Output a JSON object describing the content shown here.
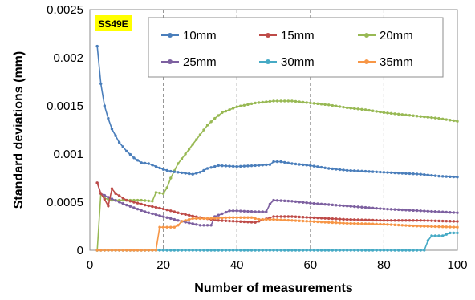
{
  "chart_data": {
    "type": "line",
    "badge": "SS49E",
    "xlabel": "Number of measurements",
    "ylabel": "Standard deviations (mm)",
    "xlim": [
      0,
      100
    ],
    "ylim": [
      0,
      0.0025
    ],
    "xticks": [
      "0",
      "20",
      "40",
      "60",
      "80",
      "100"
    ],
    "yticks": [
      "0",
      "0.0005",
      "0.001",
      "0.0015",
      "0.002",
      "0.0025"
    ],
    "grid": "vertical dashed",
    "legend_position": "top-right",
    "series": [
      {
        "name": "10mm",
        "color": "#4a7ebb",
        "points": [
          [
            2,
            0.00212
          ],
          [
            3,
            0.00173
          ],
          [
            4,
            0.0015
          ],
          [
            5,
            0.00137
          ],
          [
            6,
            0.00126
          ],
          [
            8,
            0.00112
          ],
          [
            10,
            0.00103
          ],
          [
            12,
            0.00096
          ],
          [
            14,
            0.00091
          ],
          [
            16,
            0.0009
          ],
          [
            18,
            0.00087
          ],
          [
            20,
            0.00084
          ],
          [
            22,
            0.00082
          ],
          [
            24,
            0.00081
          ],
          [
            26,
            0.0008
          ],
          [
            28,
            0.00079
          ],
          [
            30,
            0.00081
          ],
          [
            32,
            0.00085
          ],
          [
            35,
            0.00088
          ],
          [
            40,
            0.00087
          ],
          [
            45,
            0.00088
          ],
          [
            49,
            0.00089
          ],
          [
            50,
            0.00092
          ],
          [
            52,
            0.00092
          ],
          [
            55,
            0.0009
          ],
          [
            60,
            0.00088
          ],
          [
            65,
            0.00085
          ],
          [
            70,
            0.00083
          ],
          [
            75,
            0.00082
          ],
          [
            80,
            0.00081
          ],
          [
            85,
            0.0008
          ],
          [
            90,
            0.00079
          ],
          [
            95,
            0.00077
          ],
          [
            100,
            0.00076
          ]
        ]
      },
      {
        "name": "15mm",
        "color": "#be4b48",
        "points": [
          [
            2,
            0.0007
          ],
          [
            3,
            0.00059
          ],
          [
            4,
            0.00053
          ],
          [
            5,
            0.00046
          ],
          [
            6,
            0.00064
          ],
          [
            7,
            0.00059
          ],
          [
            10,
            0.00052
          ],
          [
            15,
            0.00047
          ],
          [
            20,
            0.00043
          ],
          [
            25,
            0.00038
          ],
          [
            30,
            0.00034
          ],
          [
            35,
            0.00031
          ],
          [
            40,
            0.0003
          ],
          [
            45,
            0.00029
          ],
          [
            50,
            0.00035
          ],
          [
            55,
            0.00035
          ],
          [
            60,
            0.00034
          ],
          [
            70,
            0.00032
          ],
          [
            80,
            0.00031
          ],
          [
            90,
            0.00031
          ],
          [
            100,
            0.0003
          ]
        ]
      },
      {
        "name": "20mm",
        "color": "#98b954",
        "points": [
          [
            2,
            0
          ],
          [
            3,
            0.00059
          ],
          [
            4,
            0.00054
          ],
          [
            6,
            0.00052
          ],
          [
            10,
            0.00052
          ],
          [
            14,
            0.00052
          ],
          [
            17,
            0.00051
          ],
          [
            18,
            0.0006
          ],
          [
            20,
            0.00059
          ],
          [
            21,
            0.00065
          ],
          [
            22,
            0.00075
          ],
          [
            24,
            0.0009
          ],
          [
            26,
            0.001
          ],
          [
            28,
            0.0011
          ],
          [
            30,
            0.0012
          ],
          [
            32,
            0.0013
          ],
          [
            34,
            0.00137
          ],
          [
            36,
            0.00143
          ],
          [
            40,
            0.00149
          ],
          [
            45,
            0.00153
          ],
          [
            50,
            0.00155
          ],
          [
            55,
            0.00155
          ],
          [
            60,
            0.00153
          ],
          [
            65,
            0.00151
          ],
          [
            70,
            0.00148
          ],
          [
            75,
            0.00146
          ],
          [
            80,
            0.00143
          ],
          [
            85,
            0.00141
          ],
          [
            90,
            0.00139
          ],
          [
            95,
            0.00137
          ],
          [
            100,
            0.00134
          ]
        ]
      },
      {
        "name": "25mm",
        "color": "#7d60a0",
        "points": [
          [
            2,
            0.0007
          ],
          [
            3,
            0.00059
          ],
          [
            5,
            0.00055
          ],
          [
            10,
            0.00047
          ],
          [
            15,
            0.0004
          ],
          [
            20,
            0.00035
          ],
          [
            25,
            0.0003
          ],
          [
            30,
            0.00026
          ],
          [
            33,
            0.00026
          ],
          [
            34,
            0.00035
          ],
          [
            36,
            0.00038
          ],
          [
            38,
            0.00041
          ],
          [
            40,
            0.00041
          ],
          [
            45,
            0.0004
          ],
          [
            48,
            0.0004
          ],
          [
            49,
            0.00048
          ],
          [
            50,
            0.00052
          ],
          [
            55,
            0.00051
          ],
          [
            60,
            0.00049
          ],
          [
            70,
            0.00046
          ],
          [
            80,
            0.00043
          ],
          [
            90,
            0.00041
          ],
          [
            100,
            0.00039
          ]
        ]
      },
      {
        "name": "30mm",
        "color": "#46aac5",
        "points": [
          [
            2,
            0
          ],
          [
            20,
            0
          ],
          [
            40,
            0
          ],
          [
            60,
            0
          ],
          [
            80,
            0
          ],
          [
            91,
            0
          ],
          [
            92,
            0.0001
          ],
          [
            93,
            0.00015
          ],
          [
            96,
            0.00015
          ],
          [
            98,
            0.00018
          ],
          [
            100,
            0.00018
          ]
        ]
      },
      {
        "name": "35mm",
        "color": "#f79646",
        "points": [
          [
            2,
            0
          ],
          [
            18,
            0
          ],
          [
            19,
            0.00024
          ],
          [
            23,
            0.00024
          ],
          [
            24,
            0.00026
          ],
          [
            25,
            0.0003
          ],
          [
            28,
            0.00033
          ],
          [
            32,
            0.00033
          ],
          [
            38,
            0.00034
          ],
          [
            44,
            0.00034
          ],
          [
            46,
            0.00032
          ],
          [
            50,
            0.00032
          ],
          [
            60,
            0.0003
          ],
          [
            70,
            0.00028
          ],
          [
            80,
            0.00027
          ],
          [
            90,
            0.00025
          ],
          [
            100,
            0.00024
          ]
        ]
      }
    ]
  }
}
